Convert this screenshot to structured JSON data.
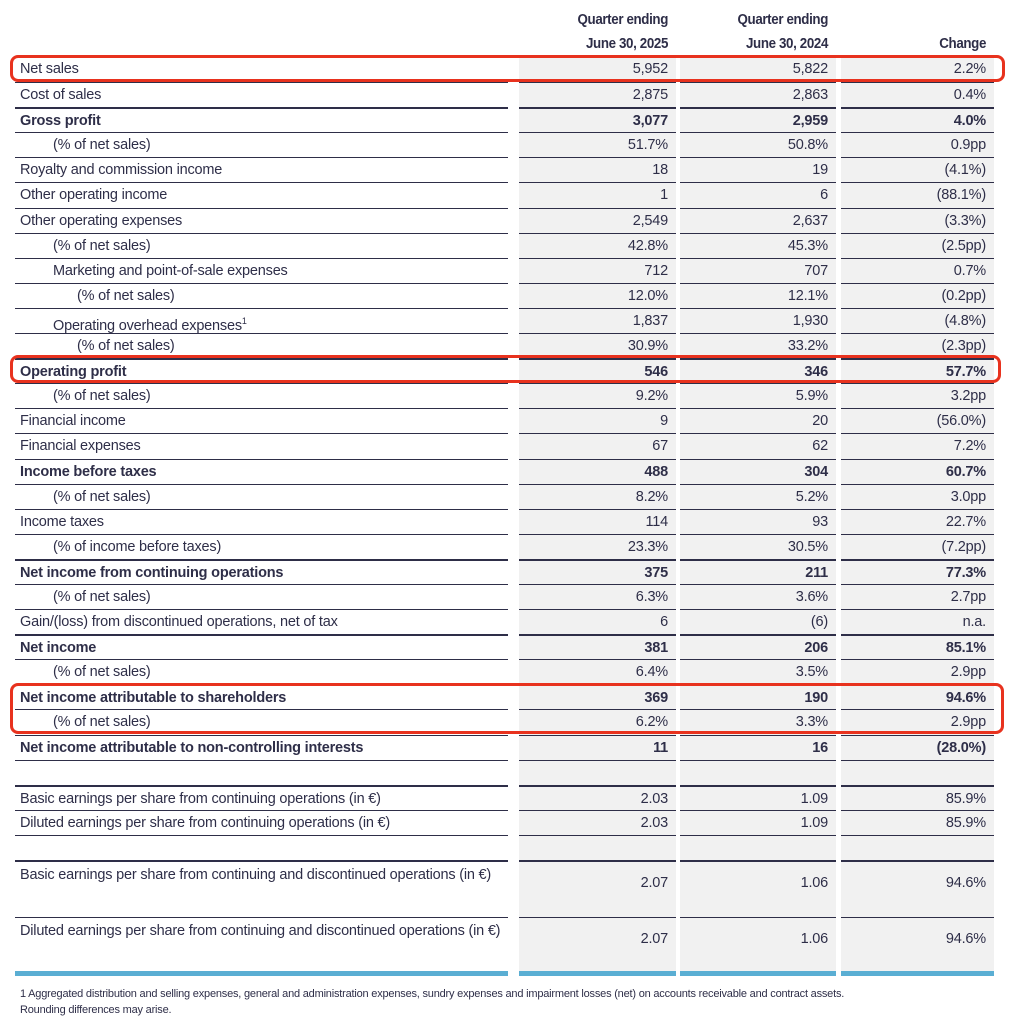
{
  "headers": {
    "col1": [
      "Quarter ending",
      "June 30, 2025"
    ],
    "col2": [
      "Quarter ending",
      "June 30, 2024"
    ],
    "col3": "Change"
  },
  "rows": [
    {
      "label": "Net sales",
      "v1": "5,952",
      "v2": "5,822",
      "v3": "2.2%",
      "bold": false,
      "indent": 0,
      "highlighted": true
    },
    {
      "label": "Cost of sales",
      "v1": "2,875",
      "v2": "2,863",
      "v3": "0.4%",
      "bold": false,
      "indent": 0
    },
    {
      "label": "Gross profit",
      "v1": "3,077",
      "v2": "2,959",
      "v3": "4.0%",
      "bold": true,
      "indent": 0
    },
    {
      "label": "(% of net sales)",
      "v1": "51.7%",
      "v2": "50.8%",
      "v3": "0.9pp",
      "bold": false,
      "indent": 1
    },
    {
      "label": "Royalty and commission income",
      "v1": "18",
      "v2": "19",
      "v3": "(4.1%)",
      "bold": false,
      "indent": 0
    },
    {
      "label": "Other operating income",
      "v1": "1",
      "v2": "6",
      "v3": "(88.1%)",
      "bold": false,
      "indent": 0
    },
    {
      "label": "Other operating expenses",
      "v1": "2,549",
      "v2": "2,637",
      "v3": "(3.3%)",
      "bold": false,
      "indent": 0
    },
    {
      "label": "(% of net sales)",
      "v1": "42.8%",
      "v2": "45.3%",
      "v3": "(2.5pp)",
      "bold": false,
      "indent": 1
    },
    {
      "label": "Marketing and point-of-sale expenses",
      "v1": "712",
      "v2": "707",
      "v3": "0.7%",
      "bold": false,
      "indent": 1
    },
    {
      "label": "(% of net sales)",
      "v1": "12.0%",
      "v2": "12.1%",
      "v3": "(0.2pp)",
      "bold": false,
      "indent": 2
    },
    {
      "label": "Operating overhead expenses",
      "sup": "1",
      "v1": "1,837",
      "v2": "1,930",
      "v3": "(4.8%)",
      "bold": false,
      "indent": 1
    },
    {
      "label": "(% of net sales)",
      "v1": "30.9%",
      "v2": "33.2%",
      "v3": "(2.3pp)",
      "bold": false,
      "indent": 2
    },
    {
      "label": "Operating profit",
      "v1": "546",
      "v2": "346",
      "v3": "57.7%",
      "bold": true,
      "indent": 0,
      "highlighted": true
    },
    {
      "label": "(% of net sales)",
      "v1": "9.2%",
      "v2": "5.9%",
      "v3": "3.2pp",
      "bold": false,
      "indent": 1
    },
    {
      "label": "Financial income",
      "v1": "9",
      "v2": "20",
      "v3": "(56.0%)",
      "bold": false,
      "indent": 0
    },
    {
      "label": "Financial expenses",
      "v1": "67",
      "v2": "62",
      "v3": "7.2%",
      "bold": false,
      "indent": 0
    },
    {
      "label": "Income before taxes",
      "v1": "488",
      "v2": "304",
      "v3": "60.7%",
      "bold": true,
      "indent": 0
    },
    {
      "label": "(% of net sales)",
      "v1": "8.2%",
      "v2": "5.2%",
      "v3": "3.0pp",
      "bold": false,
      "indent": 1
    },
    {
      "label": "Income taxes",
      "v1": "114",
      "v2": "93",
      "v3": "22.7%",
      "bold": false,
      "indent": 0
    },
    {
      "label": "(% of income before taxes)",
      "v1": "23.3%",
      "v2": "30.5%",
      "v3": "(7.2pp)",
      "bold": false,
      "indent": 1
    },
    {
      "label": "Net income from continuing operations",
      "v1": "375",
      "v2": "211",
      "v3": "77.3%",
      "bold": true,
      "indent": 0
    },
    {
      "label": "(% of net sales)",
      "v1": "6.3%",
      "v2": "3.6%",
      "v3": "2.7pp",
      "bold": false,
      "indent": 1
    },
    {
      "label": "Gain/(loss) from discontinued operations, net of tax",
      "v1": "6",
      "v2": "(6)",
      "v3": "n.a.",
      "bold": false,
      "indent": 0
    },
    {
      "label": "Net income",
      "v1": "381",
      "v2": "206",
      "v3": "85.1%",
      "bold": true,
      "indent": 0
    },
    {
      "label": "(% of net sales)",
      "v1": "6.4%",
      "v2": "3.5%",
      "v3": "2.9pp",
      "bold": false,
      "indent": 1
    },
    {
      "label": "Net income attributable to shareholders",
      "v1": "369",
      "v2": "190",
      "v3": "94.6%",
      "bold": true,
      "indent": 0,
      "highlighted": true
    },
    {
      "label": "(% of net sales)",
      "v1": "6.2%",
      "v2": "3.3%",
      "v3": "2.9pp",
      "bold": false,
      "indent": 1,
      "highlighted": true
    },
    {
      "label": "Net income attributable to non-controlling interests",
      "v1": "11",
      "v2": "16",
      "v3": "(28.0%)",
      "bold": true,
      "indent": 0
    },
    {
      "blank": true
    },
    {
      "label": "Basic earnings per share from continuing operations (in €)",
      "v1": "2.03",
      "v2": "1.09",
      "v3": "85.9%",
      "bold": false,
      "indent": 0
    },
    {
      "label": "Diluted earnings per share from continuing operations (in €)",
      "v1": "2.03",
      "v2": "1.09",
      "v3": "85.9%",
      "bold": false,
      "indent": 0
    },
    {
      "blank": true
    },
    {
      "label": "Basic earnings per share from continuing and discontinued operations (in €)",
      "v1": "2.07",
      "v2": "1.06",
      "v3": "94.6%",
      "bold": false,
      "indent": 0,
      "tall": true
    },
    {
      "label": "Diluted earnings per share from continuing and discontinued operations (in €)",
      "v1": "2.07",
      "v2": "1.06",
      "v3": "94.6%",
      "bold": false,
      "indent": 0,
      "tall": true
    }
  ],
  "footnotes": [
    "1 Aggregated distribution and selling expenses, general and administration expenses, sundry expenses and impairment losses (net) on accounts receivable and contract assets.",
    "Rounding differences may arise."
  ],
  "colors": {
    "text": "#2e2e48",
    "highlight": "#e8321e",
    "accent_rule": "#5aaed3",
    "column_shading": "#f1f1f1"
  }
}
